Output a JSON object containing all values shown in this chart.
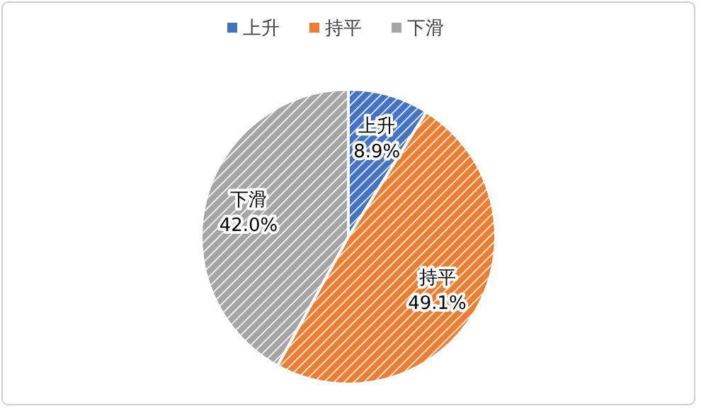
{
  "chart_data": {
    "type": "pie",
    "categories": [
      "上升",
      "持平",
      "下滑"
    ],
    "values": [
      8.9,
      49.1,
      42.0
    ],
    "colors": [
      "#4472c4",
      "#ed7d31",
      "#a5a5a5"
    ],
    "value_labels": [
      "8.9%",
      "49.1%",
      "42.0%"
    ],
    "legend": "top"
  }
}
